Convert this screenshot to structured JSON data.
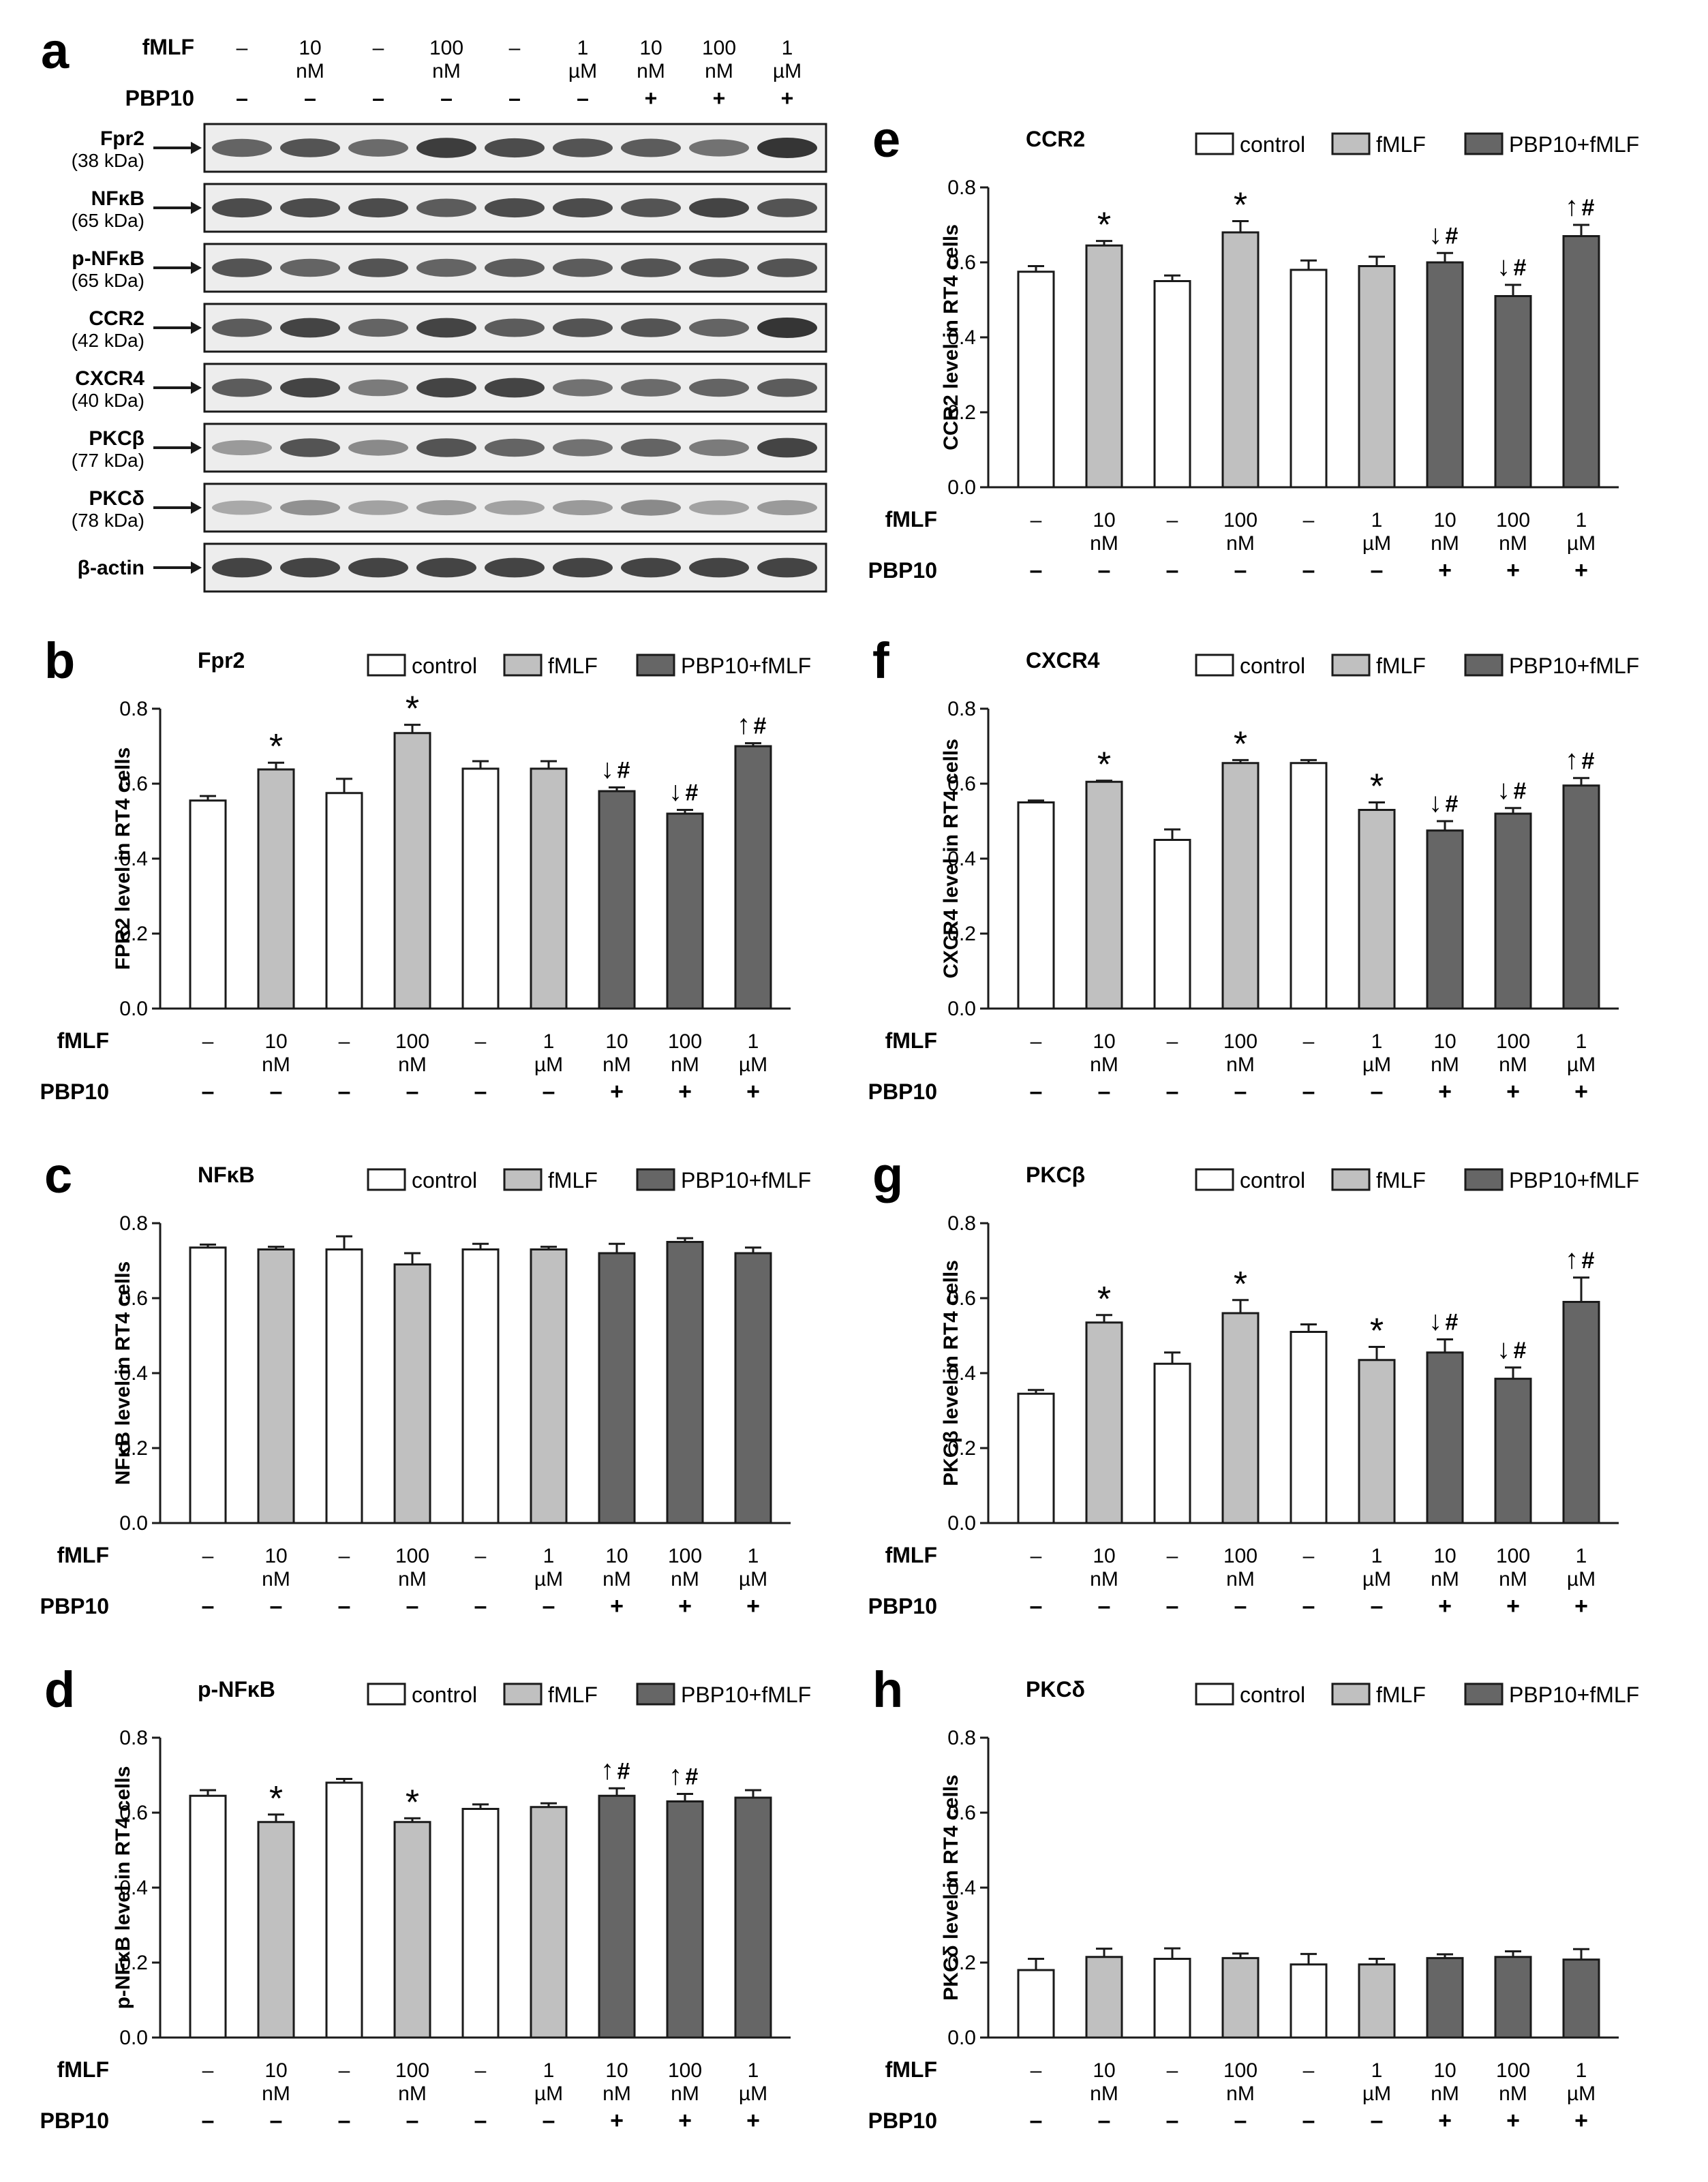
{
  "colors": {
    "control": "#ffffff",
    "fmlf": "#c0c0c0",
    "pbp": "#666666",
    "axis": "#1a1a1a",
    "blot_bg": "#ededed",
    "band": "#2b2b2b"
  },
  "conditions": {
    "fmlf_label": "fMLF",
    "pbp_label": "PBP10",
    "fmlf_top": [
      "–",
      "10",
      "–",
      "100",
      "–",
      "1",
      "10",
      "100",
      "1"
    ],
    "fmlf_unit": [
      "",
      "nM",
      "",
      "nM",
      "",
      "µM",
      "nM",
      "nM",
      "µM"
    ],
    "pbp": [
      "–",
      "–",
      "–",
      "–",
      "–",
      "–",
      "+",
      "+",
      "+"
    ],
    "groups": [
      "control",
      "fmlf",
      "control",
      "fmlf",
      "control",
      "fmlf",
      "pbp",
      "pbp",
      "pbp"
    ]
  },
  "legend": {
    "control": "control",
    "fmlf": "fMLF",
    "pbp": "PBP10+fMLF"
  },
  "blot": {
    "panel_letter": "a",
    "rows": [
      {
        "name": "Fpr2",
        "kda": "(38 kDa)",
        "intensity": [
          0.7,
          0.8,
          0.65,
          0.95,
          0.85,
          0.8,
          0.75,
          0.6,
          1.0
        ]
      },
      {
        "name": "NFκB",
        "kda": "(65 kDa)",
        "intensity": [
          0.85,
          0.85,
          0.85,
          0.75,
          0.85,
          0.85,
          0.8,
          0.9,
          0.8
        ]
      },
      {
        "name": "p-NFκB",
        "kda": "(65 kDa)",
        "intensity": [
          0.8,
          0.7,
          0.8,
          0.7,
          0.75,
          0.75,
          0.8,
          0.8,
          0.8
        ]
      },
      {
        "name": "CCR2",
        "kda": "(42 kDa)",
        "intensity": [
          0.75,
          0.9,
          0.7,
          0.9,
          0.75,
          0.8,
          0.8,
          0.7,
          1.0
        ]
      },
      {
        "name": "CXCR4",
        "kda": "(40 kDa)",
        "intensity": [
          0.75,
          0.9,
          0.55,
          0.9,
          0.9,
          0.6,
          0.65,
          0.7,
          0.75
        ]
      },
      {
        "name": "PKCβ",
        "kda": "(77 kDa)",
        "intensity": [
          0.35,
          0.8,
          0.45,
          0.8,
          0.7,
          0.6,
          0.7,
          0.55,
          0.9
        ]
      },
      {
        "name": "PKCδ",
        "kda": "(78 kDa)",
        "intensity": [
          0.25,
          0.4,
          0.3,
          0.35,
          0.3,
          0.35,
          0.45,
          0.3,
          0.35
        ]
      },
      {
        "name": "β-actin",
        "kda": "",
        "intensity": [
          0.9,
          0.9,
          0.9,
          0.9,
          0.9,
          0.9,
          0.9,
          0.9,
          0.9
        ]
      }
    ]
  },
  "chart_data": [
    {
      "panel": "b",
      "type": "bar",
      "title": "Fpr2",
      "ylabel": "FPR2 level in RT4 cells",
      "ylim": [
        0,
        0.8
      ],
      "yticks": [
        "0.0",
        "0.2",
        "0.4",
        "0.6",
        "0.8"
      ],
      "values": [
        0.555,
        0.638,
        0.575,
        0.735,
        0.64,
        0.64,
        0.58,
        0.52,
        0.7
      ],
      "errors": [
        0.012,
        0.018,
        0.038,
        0.022,
        0.02,
        0.02,
        0.01,
        0.01,
        0.008
      ],
      "annotations": [
        "",
        "*",
        "",
        "*",
        "",
        "",
        "↓#",
        "↓#",
        "↑#"
      ]
    },
    {
      "panel": "c",
      "type": "bar",
      "title": "NFκB",
      "ylabel": "NFκB level in RT4 cells",
      "ylim": [
        0,
        0.8
      ],
      "yticks": [
        "0.0",
        "0.2",
        "0.4",
        "0.6",
        "0.8"
      ],
      "values": [
        0.735,
        0.73,
        0.73,
        0.69,
        0.73,
        0.73,
        0.72,
        0.75,
        0.72
      ],
      "errors": [
        0.008,
        0.007,
        0.035,
        0.03,
        0.015,
        0.007,
        0.025,
        0.01,
        0.015
      ],
      "annotations": [
        "",
        "",
        "",
        "",
        "",
        "",
        "",
        "",
        ""
      ]
    },
    {
      "panel": "d",
      "type": "bar",
      "title": "p-NFκB",
      "ylabel": "p-NFκB level in RT4 cells",
      "ylim": [
        0,
        0.8
      ],
      "yticks": [
        "0.0",
        "0.2",
        "0.4",
        "0.6",
        "0.8"
      ],
      "values": [
        0.645,
        0.575,
        0.68,
        0.575,
        0.61,
        0.615,
        0.645,
        0.63,
        0.64
      ],
      "errors": [
        0.015,
        0.02,
        0.01,
        0.01,
        0.012,
        0.01,
        0.02,
        0.02,
        0.02
      ],
      "annotations": [
        "",
        "*",
        "",
        "*",
        "",
        "",
        "↑#",
        "↑#",
        ""
      ]
    },
    {
      "panel": "e",
      "type": "bar",
      "title": "CCR2",
      "ylabel": "CCR2 level in RT4 cells",
      "ylim": [
        0,
        0.8
      ],
      "yticks": [
        "0.0",
        "0.2",
        "0.4",
        "0.6",
        "0.8"
      ],
      "values": [
        0.575,
        0.645,
        0.55,
        0.68,
        0.58,
        0.59,
        0.6,
        0.51,
        0.67
      ],
      "errors": [
        0.015,
        0.012,
        0.015,
        0.03,
        0.025,
        0.025,
        0.025,
        0.03,
        0.03
      ],
      "annotations": [
        "",
        "*",
        "",
        "*",
        "",
        "",
        "↓#",
        "↓#",
        "↑#"
      ]
    },
    {
      "panel": "f",
      "type": "bar",
      "title": "CXCR4",
      "ylabel": "CXCR4 level in RT4 cells",
      "ylim": [
        0,
        0.8
      ],
      "yticks": [
        "0.0",
        "0.2",
        "0.4",
        "0.6",
        "0.8"
      ],
      "values": [
        0.55,
        0.605,
        0.45,
        0.655,
        0.655,
        0.53,
        0.475,
        0.52,
        0.595
      ],
      "errors": [
        0.005,
        0.003,
        0.028,
        0.008,
        0.008,
        0.02,
        0.025,
        0.015,
        0.02
      ],
      "annotations": [
        "",
        "*",
        "",
        "*",
        "",
        "*",
        "↓#",
        "↓#",
        "↑#"
      ]
    },
    {
      "panel": "g",
      "type": "bar",
      "title": "PKCβ",
      "ylabel": "PKCβ level in RT4 cells",
      "ylim": [
        0,
        0.8
      ],
      "yticks": [
        "0.0",
        "0.2",
        "0.4",
        "0.6",
        "0.8"
      ],
      "values": [
        0.345,
        0.535,
        0.425,
        0.56,
        0.51,
        0.435,
        0.455,
        0.385,
        0.59
      ],
      "errors": [
        0.01,
        0.02,
        0.03,
        0.035,
        0.02,
        0.035,
        0.035,
        0.03,
        0.065
      ],
      "annotations": [
        "",
        "*",
        "",
        "*",
        "",
        "*",
        "↓#",
        "↓#",
        "↑#"
      ]
    },
    {
      "panel": "h",
      "type": "bar",
      "title": "PKCδ",
      "ylabel": "PKCδ level in RT4 cells",
      "ylim": [
        0,
        0.8
      ],
      "yticks": [
        "0.0",
        "0.2",
        "0.4",
        "0.6",
        "0.8"
      ],
      "values": [
        0.18,
        0.215,
        0.21,
        0.212,
        0.195,
        0.195,
        0.212,
        0.215,
        0.208
      ],
      "errors": [
        0.03,
        0.022,
        0.028,
        0.012,
        0.028,
        0.015,
        0.01,
        0.015,
        0.028
      ],
      "annotations": [
        "",
        "",
        "",
        "",
        "",
        "",
        "",
        "",
        ""
      ]
    }
  ]
}
